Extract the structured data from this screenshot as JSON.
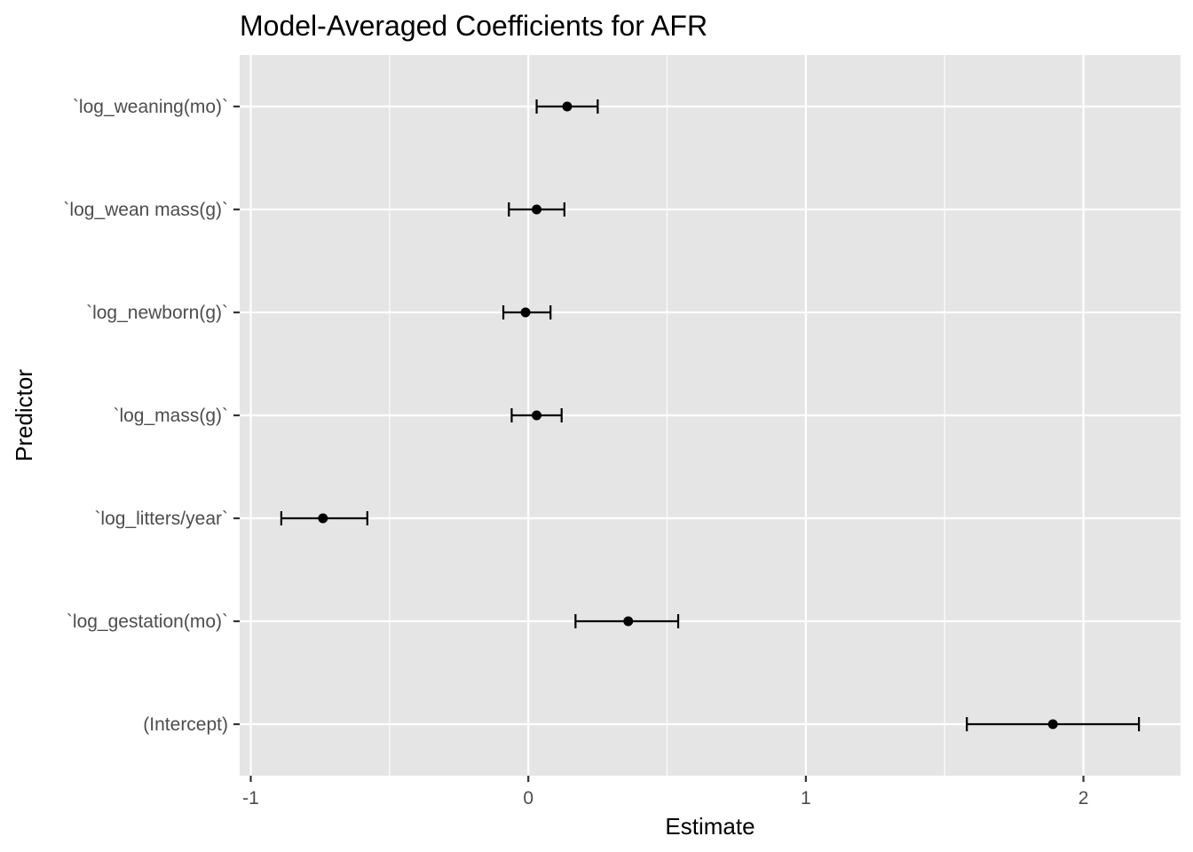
{
  "chart_data": {
    "type": "scatter",
    "subtype": "coefficient-errorbar",
    "title": "Model-Averaged Coefficients for AFR",
    "xlabel": "Estimate",
    "ylabel": "Predictor",
    "xlim": [
      -1.04,
      2.35
    ],
    "x_ticks": [
      -1,
      0,
      1,
      2
    ],
    "x_tick_labels": [
      "-1",
      "0",
      "1",
      "2"
    ],
    "grid": true,
    "legend": "none",
    "categories": [
      "`log_weaning(mo)`",
      "`log_wean mass(g)`",
      "`log_newborn(g)`",
      "`log_mass(g)`",
      "`log_litters/year`",
      "`log_gestation(mo)`",
      "(Intercept)"
    ],
    "estimates": [
      0.14,
      0.03,
      -0.01,
      0.03,
      -0.74,
      0.36,
      1.89
    ],
    "lower": [
      0.03,
      -0.07,
      -0.09,
      -0.06,
      -0.89,
      0.17,
      1.58
    ],
    "upper": [
      0.25,
      0.13,
      0.08,
      0.12,
      -0.58,
      0.54,
      2.2
    ],
    "colors": {
      "panel": "#e5e5e5",
      "grid": "#ffffff",
      "point": "#000000",
      "tick_text": "#4d4d4d"
    }
  }
}
